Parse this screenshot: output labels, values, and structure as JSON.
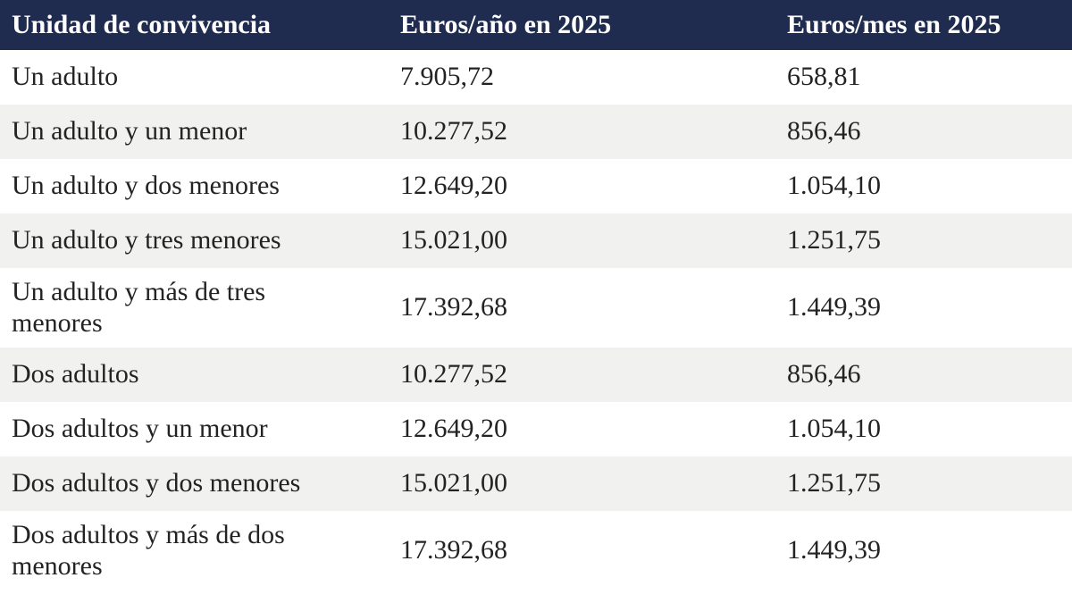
{
  "table": {
    "columns": [
      {
        "label": "Unidad de convivencia"
      },
      {
        "label": "Euros/año en 2025"
      },
      {
        "label": "Euros/mes en 2025"
      }
    ],
    "rows": [
      {
        "unit": "Un adulto",
        "per_year": "7.905,72",
        "per_month": "658,81"
      },
      {
        "unit": "Un adulto y un menor",
        "per_year": "10.277,52",
        "per_month": "856,46"
      },
      {
        "unit": "Un adulto y dos menores",
        "per_year": "12.649,20",
        "per_month": "1.054,10"
      },
      {
        "unit": "Un adulto y tres menores",
        "per_year": "15.021,00",
        "per_month": "1.251,75"
      },
      {
        "unit": "Un adulto y más de tres menores",
        "per_year": "17.392,68",
        "per_month": "1.449,39"
      },
      {
        "unit": "Dos adultos",
        "per_year": "10.277,52",
        "per_month": "856,46"
      },
      {
        "unit": "Dos adultos y un menor",
        "per_year": "12.649,20",
        "per_month": "1.054,10"
      },
      {
        "unit": "Dos adultos y dos menores",
        "per_year": "15.021,00",
        "per_month": "1.251,75"
      },
      {
        "unit": "Dos adultos y más de dos menores",
        "per_year": "17.392,68",
        "per_month": "1.449,39"
      }
    ]
  },
  "colors": {
    "header_bg": "#1f2b4f",
    "header_text": "#ffffff",
    "row_bg": "#ffffff",
    "row_alt_bg": "#f1f1ef",
    "text": "#232323"
  },
  "chart_data": {
    "type": "table",
    "title": "",
    "columns": [
      "Unidad de convivencia",
      "Euros/año en 2025",
      "Euros/mes en 2025"
    ],
    "rows": [
      [
        "Un adulto",
        "7.905,72",
        "658,81"
      ],
      [
        "Un adulto y un menor",
        "10.277,52",
        "856,46"
      ],
      [
        "Un adulto y dos menores",
        "12.649,20",
        "1.054,10"
      ],
      [
        "Un adulto y tres menores",
        "15.021,00",
        "1.251,75"
      ],
      [
        "Un adulto y más de tres menores",
        "17.392,68",
        "1.449,39"
      ],
      [
        "Dos adultos",
        "10.277,52",
        "856,46"
      ],
      [
        "Dos adultos y un menor",
        "12.649,20",
        "1.054,10"
      ],
      [
        "Dos adultos y dos menores",
        "15.021,00",
        "1.251,75"
      ],
      [
        "Dos adultos y más de dos menores",
        "17.392,68",
        "1.449,39"
      ]
    ],
    "values_numeric": {
      "per_year": [
        7905.72,
        10277.52,
        12649.2,
        15021.0,
        17392.68,
        10277.52,
        12649.2,
        15021.0,
        17392.68
      ],
      "per_month": [
        658.81,
        856.46,
        1054.1,
        1251.75,
        1449.39,
        856.46,
        1054.1,
        1251.75,
        1449.39
      ]
    },
    "layout": {
      "striped": true,
      "header_style": "dark-navy"
    }
  }
}
